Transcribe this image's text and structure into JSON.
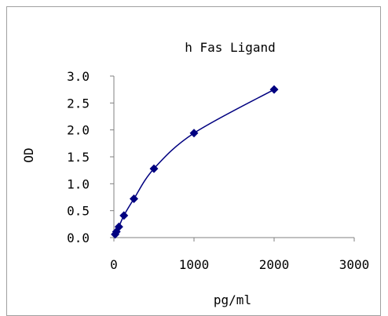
{
  "chart_data": {
    "type": "scatter",
    "title": "h Fas Ligand",
    "xlabel": "pg/ml",
    "ylabel": "OD",
    "xlim": [
      0,
      3000
    ],
    "ylim": [
      0,
      3.0
    ],
    "x_ticks": [
      "0",
      "1000",
      "2000",
      "3000"
    ],
    "y_ticks": [
      "0.0",
      "0.5",
      "1.0",
      "1.5",
      "2.0",
      "2.5",
      "3.0"
    ],
    "x_tick_values": [
      0,
      1000,
      2000,
      3000
    ],
    "y_tick_values": [
      0,
      0.5,
      1.0,
      1.5,
      2.0,
      2.5,
      3.0
    ],
    "grid": false,
    "legend": "none",
    "series": [
      {
        "x": [
          15.6,
          31.3,
          62.5,
          125,
          250,
          500,
          1000,
          2000
        ],
        "y": [
          0.06,
          0.11,
          0.2,
          0.41,
          0.72,
          1.28,
          1.94,
          2.75
        ],
        "color": "#000080",
        "marker": "diamond",
        "trendline": true
      }
    ]
  }
}
